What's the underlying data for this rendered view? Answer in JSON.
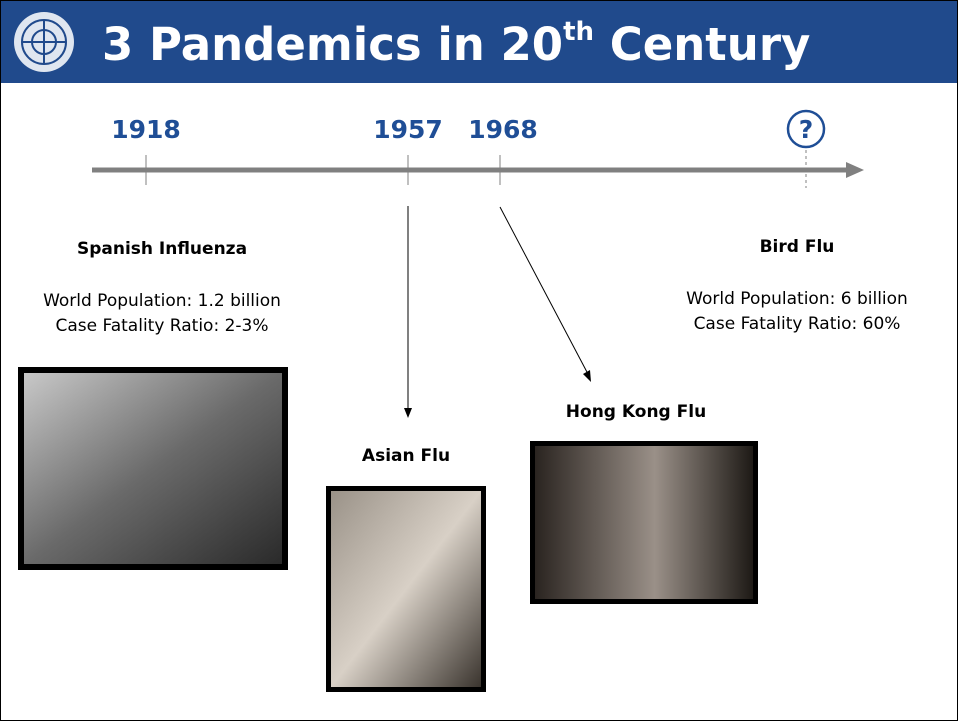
{
  "header": {
    "title_main": "3 Pandemics in 20",
    "title_sup": "th",
    "title_end": " Century"
  },
  "timeline": {
    "marks": [
      "1918",
      "1957",
      "1968",
      "?"
    ]
  },
  "pandemics": [
    {
      "name": "Spanish Influenza",
      "population": "World Population:  1.2 billion",
      "fatality": "Case Fatality Ratio:  2-3%"
    },
    {
      "name": "Asian Flu"
    },
    {
      "name": "Hong Kong Flu"
    },
    {
      "name": "Bird Flu",
      "population": "World Population:  6 billion",
      "fatality": "Case Fatality Ratio:  60%"
    }
  ]
}
